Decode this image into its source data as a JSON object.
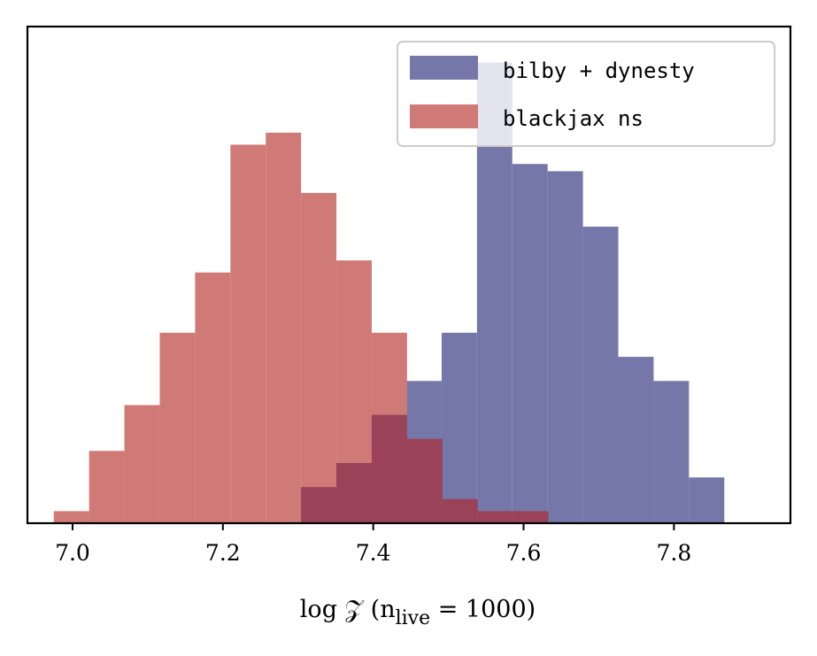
{
  "chart_data": {
    "type": "histogram",
    "title": "",
    "xlabel": {
      "prefix": "log 𝒵 (n",
      "subscript": "live",
      "suffix": " = 1000)"
    },
    "ylabel": "",
    "xlim": [
      6.94,
      7.955
    ],
    "ylim": [
      0,
      1.03
    ],
    "xticks": [
      "7.0",
      "7.2",
      "7.4",
      "7.6",
      "7.8"
    ],
    "xtick_values": [
      7.0,
      7.2,
      7.4,
      7.6,
      7.8
    ],
    "yticks_shown": false,
    "grid": false,
    "legend_position": "top-right",
    "series": [
      {
        "name": "bilby + dynesty",
        "color": "#7577a9",
        "bins": [
          {
            "x0": 7.303,
            "x1": 7.35,
            "value": 0.075
          },
          {
            "x0": 7.35,
            "x1": 7.397,
            "value": 0.125
          },
          {
            "x0": 7.397,
            "x1": 7.444,
            "value": 0.225
          },
          {
            "x0": 7.444,
            "x1": 7.491,
            "value": 0.295
          },
          {
            "x0": 7.491,
            "x1": 7.538,
            "value": 0.395
          },
          {
            "x0": 7.538,
            "x1": 7.585,
            "value": 0.955
          },
          {
            "x0": 7.585,
            "x1": 7.632,
            "value": 0.745
          },
          {
            "x0": 7.632,
            "x1": 7.679,
            "value": 0.73
          },
          {
            "x0": 7.679,
            "x1": 7.726,
            "value": 0.615
          },
          {
            "x0": 7.726,
            "x1": 7.773,
            "value": 0.345
          },
          {
            "x0": 7.773,
            "x1": 7.82,
            "value": 0.295
          },
          {
            "x0": 7.82,
            "x1": 7.867,
            "value": 0.095
          }
        ]
      },
      {
        "name": "blackjax ns",
        "color": "#d07a77",
        "bins": [
          {
            "x0": 6.975,
            "x1": 7.022,
            "value": 0.025
          },
          {
            "x0": 7.022,
            "x1": 7.069,
            "value": 0.15
          },
          {
            "x0": 7.069,
            "x1": 7.116,
            "value": 0.245
          },
          {
            "x0": 7.116,
            "x1": 7.163,
            "value": 0.395
          },
          {
            "x0": 7.163,
            "x1": 7.21,
            "value": 0.52
          },
          {
            "x0": 7.21,
            "x1": 7.257,
            "value": 0.785
          },
          {
            "x0": 7.257,
            "x1": 7.304,
            "value": 0.81
          },
          {
            "x0": 7.304,
            "x1": 7.351,
            "value": 0.685
          },
          {
            "x0": 7.351,
            "x1": 7.398,
            "value": 0.545
          },
          {
            "x0": 7.398,
            "x1": 7.445,
            "value": 0.395
          },
          {
            "x0": 7.445,
            "x1": 7.492,
            "value": 0.175
          },
          {
            "x0": 7.492,
            "x1": 7.539,
            "value": 0.05
          },
          {
            "x0": 7.539,
            "x1": 7.586,
            "value": 0.025
          },
          {
            "x0": 7.586,
            "x1": 7.633,
            "value": 0.025
          }
        ]
      }
    ],
    "overlap_color": "#9a4257"
  }
}
